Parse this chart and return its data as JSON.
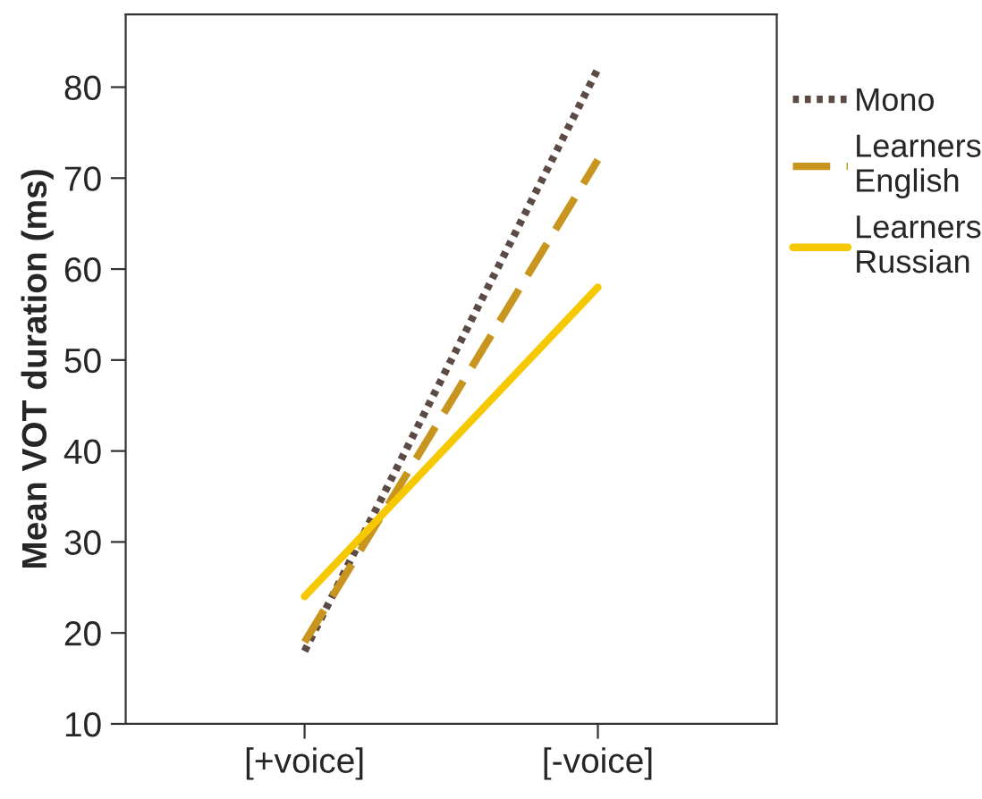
{
  "chart_data": {
    "type": "line",
    "ylabel": "Mean VOT duration (ms)",
    "categories": [
      "[+voice]",
      "[-voice]"
    ],
    "series": [
      {
        "name": "Mono",
        "color": "#5c4a44",
        "line_style": "dotted",
        "values": [
          18,
          82
        ]
      },
      {
        "name": "Learners English",
        "color": "#c8961e",
        "line_style": "dashed",
        "values": [
          19,
          72
        ]
      },
      {
        "name": "Learners Russian",
        "color": "#f5c800",
        "line_style": "solid",
        "values": [
          24,
          58
        ]
      }
    ],
    "ylim": [
      10,
      88
    ],
    "yticks": [
      10,
      20,
      30,
      40,
      50,
      60,
      70,
      80
    ],
    "grid": false,
    "legend": "top right",
    "marker": "none"
  }
}
